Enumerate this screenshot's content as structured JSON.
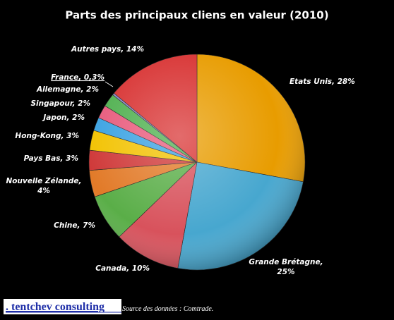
{
  "chart_data": {
    "type": "pie",
    "title": "Parts des principaux cliens en valeur (2010)",
    "values": [
      28,
      25,
      10,
      7,
      4,
      3,
      3,
      2,
      2,
      2,
      0.3,
      14
    ],
    "value_labels": [
      "Etats Unis, 28%",
      "Grande Brétagne,\n25%",
      "Canada, 10%",
      "Chine, 7%",
      "Nouvelle Zélande,\n4%",
      "Pays Bas, 3%",
      "Hong-Kong, 3%",
      "Japon, 2%",
      "Singapour, 2%",
      "Allemagne, 2%",
      "France, 0,3%",
      "Autres pays, 14%"
    ],
    "colors": [
      "#e89c00",
      "#47a7cf",
      "#d8525c",
      "#5aae48",
      "#e27a28",
      "#cf3838",
      "#f2c200",
      "#3aa2e2",
      "#e85a7c",
      "#4fb04f",
      "#8a86c8",
      "#d83232"
    ]
  },
  "footer": {
    "brand": ". tentchev consulting",
    "source": "Source des données : Comtrade."
  }
}
